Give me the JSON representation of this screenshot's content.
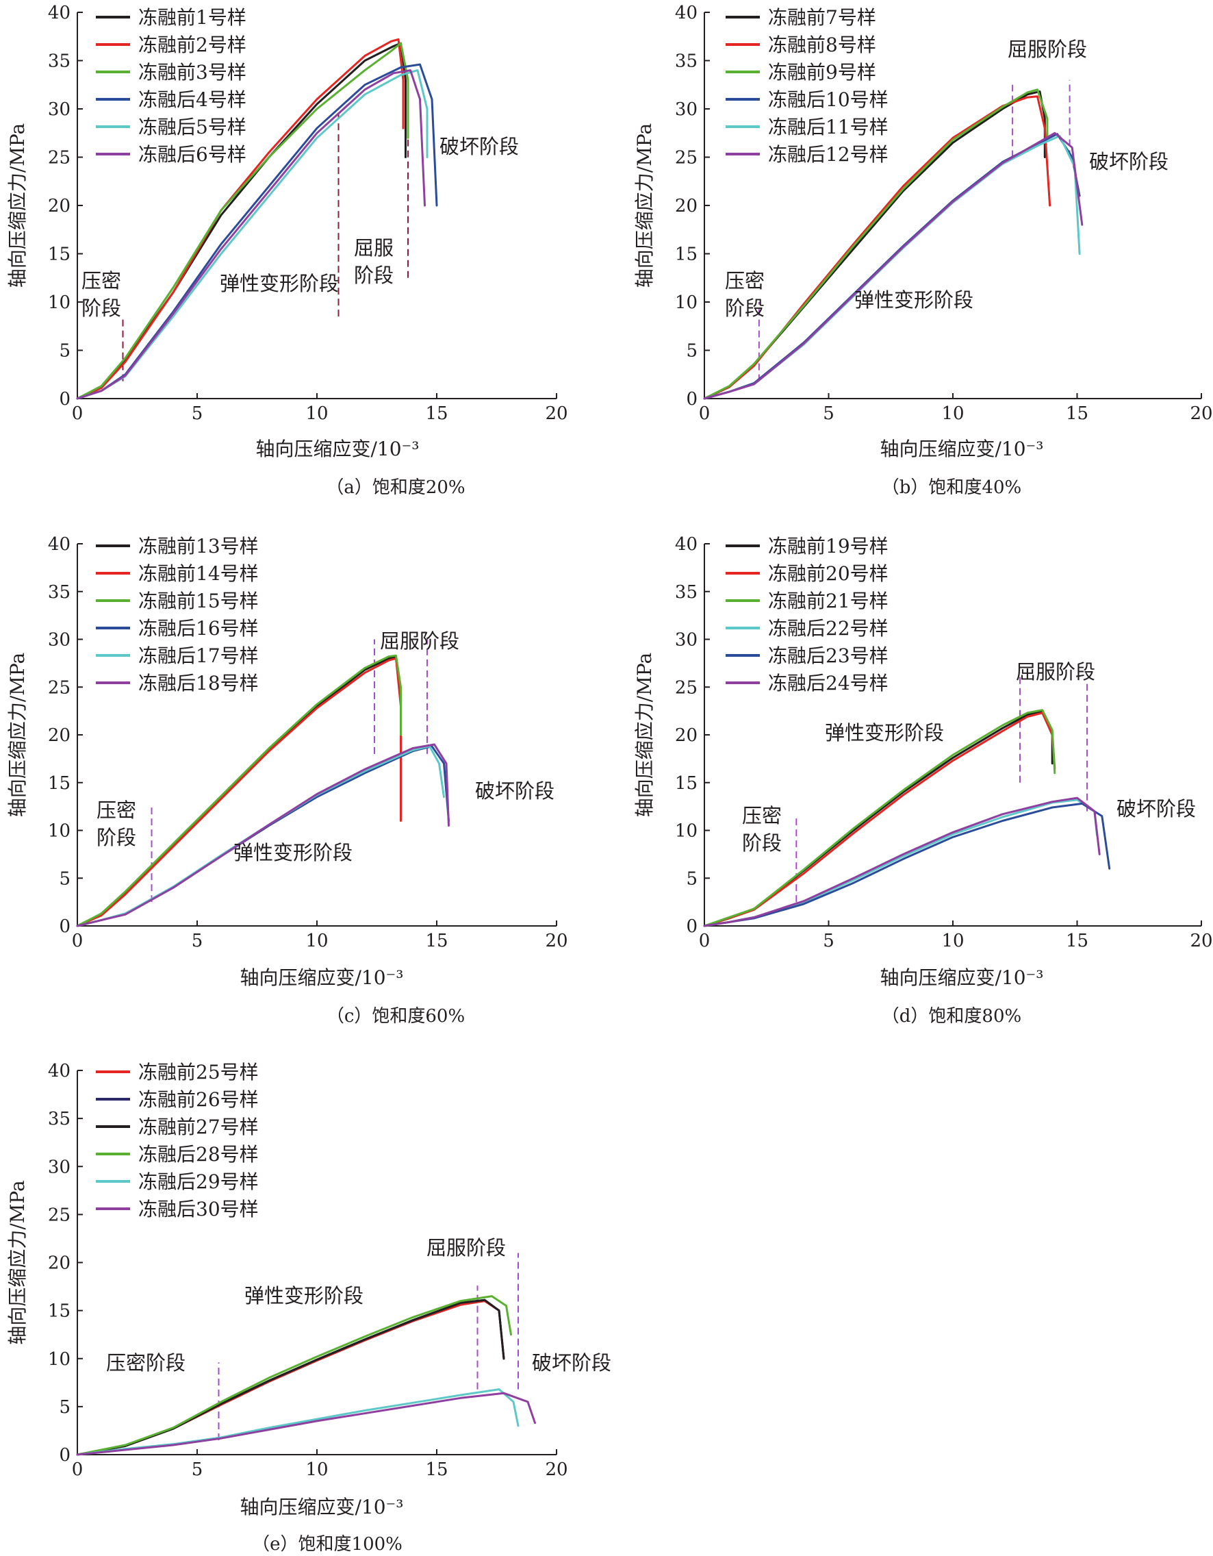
{
  "chart_data": [
    {
      "type": "line",
      "caption": "（a）饱和度20%",
      "xlabel": "轴向压缩应变/10⁻³",
      "ylabel": "轴向压缩应力/MPa",
      "xlim": [
        0,
        20
      ],
      "ylim": [
        0,
        40
      ],
      "xticks": [
        "0",
        "5",
        "10",
        "15",
        "20"
      ],
      "yticks": [
        "0",
        "5",
        "10",
        "15",
        "20",
        "25",
        "30",
        "35",
        "40"
      ],
      "colors": [
        "#231f20",
        "#e52521",
        "#5ab031",
        "#2b4b9b",
        "#5cc8c8",
        "#8e3fa0"
      ],
      "series": [
        {
          "name": "冻融前1号样",
          "x": [
            0,
            1,
            2,
            4,
            6,
            8,
            10,
            12,
            13.2,
            13.5,
            13.7,
            13.7
          ],
          "y": [
            0,
            1.2,
            4.0,
            11,
            19,
            25,
            30.5,
            35,
            36.5,
            36.8,
            33,
            25
          ]
        },
        {
          "name": "冻融前2号样",
          "x": [
            0,
            1,
            2,
            4,
            6,
            8,
            10,
            12,
            13.1,
            13.4,
            13.6,
            13.6
          ],
          "y": [
            0,
            1.1,
            3.8,
            11,
            19.5,
            25.5,
            31,
            35.5,
            37,
            37.2,
            33,
            28
          ]
        },
        {
          "name": "冻融前3号样",
          "x": [
            0,
            1,
            2,
            4,
            6,
            8,
            10,
            12,
            13.1,
            13.5,
            13.8,
            13.8
          ],
          "y": [
            0,
            1.3,
            4.2,
            11.5,
            19.5,
            25,
            30,
            34,
            36,
            36.8,
            33,
            27
          ]
        },
        {
          "name": "冻融后4号样",
          "x": [
            0,
            1,
            2,
            4,
            6,
            8,
            10,
            12,
            13.5,
            14.3,
            14.8,
            15
          ],
          "y": [
            0,
            0.8,
            2.5,
            9,
            16,
            22,
            28,
            32.5,
            34.3,
            34.6,
            31,
            20
          ]
        },
        {
          "name": "冻融后5号样",
          "x": [
            0,
            1,
            2,
            4,
            6,
            8,
            10,
            12,
            13.5,
            14.2,
            14.6,
            14.6
          ],
          "y": [
            0,
            0.8,
            2.3,
            8.5,
            15,
            21,
            27,
            31.5,
            33.5,
            34,
            30,
            25
          ]
        },
        {
          "name": "冻融后6号样",
          "x": [
            0,
            1,
            2,
            4,
            6,
            8,
            10,
            12,
            13.2,
            13.9,
            14.3,
            14.5
          ],
          "y": [
            0,
            0.8,
            2.4,
            8.8,
            15.5,
            21.5,
            27.5,
            32,
            33.7,
            34,
            31,
            20
          ]
        }
      ],
      "stage_labels": [
        "压密",
        "阶段",
        "弹性变形阶段",
        "屈服",
        "阶段",
        "破坏阶段"
      ],
      "stage_lines_x": [
        1.9,
        10.9,
        13.8
      ]
    },
    {
      "type": "line",
      "caption": "（b）饱和度40%",
      "xlabel": "轴向压缩应变/10⁻³",
      "ylabel": "轴向压缩应力/MPa",
      "xlim": [
        0,
        20
      ],
      "ylim": [
        0,
        40
      ],
      "xticks": [
        "0",
        "5",
        "10",
        "15",
        "20"
      ],
      "yticks": [
        "0",
        "5",
        "10",
        "15",
        "20",
        "25",
        "30",
        "35",
        "40"
      ],
      "colors": [
        "#231f20",
        "#e52521",
        "#5ab031",
        "#2b4b9b",
        "#5cc8c8",
        "#8e3fa0"
      ],
      "series": [
        {
          "name": "冻融前7号样",
          "x": [
            0,
            1,
            2,
            4,
            6,
            8,
            10,
            12,
            13,
            13.5,
            13.7,
            13.7
          ],
          "y": [
            0,
            1.2,
            3.5,
            9.5,
            15.5,
            21.5,
            26.5,
            30,
            31.5,
            31.8,
            29,
            25
          ]
        },
        {
          "name": "冻融前8号样",
          "x": [
            0,
            1,
            2,
            4,
            6,
            8,
            10,
            12,
            13,
            13.4,
            13.7,
            13.9
          ],
          "y": [
            0,
            1.2,
            3.4,
            9.8,
            16,
            22,
            27,
            30.3,
            31.2,
            31.3,
            28,
            20
          ]
        },
        {
          "name": "冻融前9号样",
          "x": [
            0,
            1,
            2,
            4,
            6,
            8,
            10,
            12,
            13,
            13.4,
            13.8,
            13.8
          ],
          "y": [
            0,
            1.3,
            3.6,
            9.6,
            15.8,
            21.7,
            26.8,
            30.2,
            31.7,
            32,
            29,
            27
          ]
        },
        {
          "name": "冻融后10号样",
          "x": [
            0,
            1,
            2,
            4,
            6,
            8,
            10,
            12,
            13.5,
            14.2,
            14.8,
            15.1
          ],
          "y": [
            0,
            0.7,
            1.6,
            5.8,
            10.8,
            15.8,
            20.5,
            24.5,
            26.5,
            27.4,
            25,
            21
          ]
        },
        {
          "name": "冻融后11号样",
          "x": [
            0,
            1,
            2,
            4,
            6,
            8,
            10,
            12,
            13.5,
            14.3,
            14.9,
            15.1
          ],
          "y": [
            0,
            0.7,
            1.5,
            5.6,
            10.6,
            15.6,
            20.3,
            24.3,
            26.3,
            27.2,
            24,
            15
          ]
        },
        {
          "name": "冻融后12号样",
          "x": [
            0,
            1,
            2,
            4,
            6,
            8,
            10,
            12,
            13.5,
            14.1,
            14.8,
            15.2
          ],
          "y": [
            0,
            0.7,
            1.5,
            5.7,
            10.7,
            15.7,
            20.4,
            24.4,
            26.6,
            27.5,
            26,
            18
          ]
        }
      ],
      "stage_labels": [
        "压密",
        "阶段",
        "弹性变形阶段",
        "屈服阶段",
        "破坏阶段"
      ],
      "stage_lines_x": [
        2.2,
        12.4,
        14.7
      ]
    },
    {
      "type": "line",
      "caption": "（c）饱和度60%",
      "xlabel": "轴向压缩应变/10⁻³",
      "ylabel": "轴向压缩应力/MPa",
      "xlim": [
        0,
        20
      ],
      "ylim": [
        0,
        40
      ],
      "xticks": [
        "0",
        "5",
        "10",
        "15",
        "20"
      ],
      "yticks": [
        "0",
        "5",
        "10",
        "15",
        "20",
        "25",
        "30",
        "35",
        "40"
      ],
      "colors": [
        "#231f20",
        "#e52521",
        "#5ab031",
        "#2b4b9b",
        "#5cc8c8",
        "#8e3fa0"
      ],
      "series": [
        {
          "name": "冻融前13号样",
          "x": [
            0,
            1,
            2,
            4,
            6,
            8,
            10,
            12,
            13,
            13.3,
            13.5,
            13.5
          ],
          "y": [
            0,
            1.2,
            3.5,
            8.5,
            13.5,
            18.5,
            23,
            26.8,
            28,
            28.1,
            24,
            15
          ]
        },
        {
          "name": "冻融前14号样",
          "x": [
            0,
            1,
            2,
            4,
            6,
            8,
            10,
            12,
            13,
            13.3,
            13.5,
            13.5
          ],
          "y": [
            0,
            1.1,
            3.3,
            8.3,
            13.3,
            18.3,
            22.8,
            26.5,
            27.8,
            28,
            23,
            11
          ]
        },
        {
          "name": "冻融前15号样",
          "x": [
            0,
            1,
            2,
            4,
            6,
            8,
            10,
            12,
            13,
            13.3,
            13.5,
            13.5
          ],
          "y": [
            0,
            1.3,
            3.6,
            8.6,
            13.6,
            18.6,
            23.2,
            27,
            28.2,
            28.3,
            25,
            20
          ]
        },
        {
          "name": "冻融后16号样",
          "x": [
            0,
            1,
            2,
            4,
            6,
            8,
            10,
            12,
            14,
            14.8,
            15.3,
            15.5
          ],
          "y": [
            0,
            0.6,
            1.3,
            4,
            7.3,
            10.5,
            13.5,
            16,
            18.3,
            18.8,
            17,
            11
          ]
        },
        {
          "name": "冻融后17号样",
          "x": [
            0,
            1,
            2,
            4,
            6,
            8,
            10,
            12,
            14,
            14.7,
            15.1,
            15.3
          ],
          "y": [
            0,
            0.6,
            1.3,
            4.1,
            7.4,
            10.6,
            13.7,
            16.2,
            18.4,
            18.8,
            17,
            13.5
          ]
        },
        {
          "name": "冻融后18号样",
          "x": [
            0,
            1,
            2,
            4,
            6,
            8,
            10,
            12,
            14,
            14.9,
            15.4,
            15.5
          ],
          "y": [
            0,
            0.6,
            1.2,
            4,
            7.3,
            10.6,
            13.8,
            16.4,
            18.6,
            19,
            17,
            10.5
          ]
        }
      ],
      "stage_labels": [
        "压密",
        "阶段",
        "弹性变形阶段",
        "屈服阶段",
        "破坏阶段"
      ],
      "stage_lines_x": [
        3.1,
        12.4,
        14.6
      ]
    },
    {
      "type": "line",
      "caption": "（d）饱和度80%",
      "xlabel": "轴向压缩应变/10⁻³",
      "ylabel": "轴向压缩应力/MPa",
      "xlim": [
        0,
        20
      ],
      "ylim": [
        0,
        40
      ],
      "xticks": [
        "0",
        "5",
        "10",
        "15",
        "20"
      ],
      "yticks": [
        "0",
        "5",
        "10",
        "15",
        "20",
        "25",
        "30",
        "35",
        "40"
      ],
      "colors": [
        "#231f20",
        "#e52521",
        "#5ab031",
        "#5cc8c8",
        "#2b4b9b",
        "#8e3fa0"
      ],
      "series": [
        {
          "name": "冻融前19号样",
          "x": [
            0,
            1,
            2,
            4,
            6,
            8,
            10,
            12,
            13,
            13.6,
            14,
            14
          ],
          "y": [
            0,
            0.8,
            1.8,
            5.8,
            10,
            14,
            17.6,
            20.7,
            22.1,
            22.5,
            20,
            17
          ]
        },
        {
          "name": "冻融前20号样",
          "x": [
            0,
            1,
            2,
            4,
            6,
            8,
            10,
            12,
            13,
            13.6,
            14,
            14.1
          ],
          "y": [
            0,
            0.8,
            1.7,
            5.5,
            9.7,
            13.7,
            17.3,
            20.4,
            21.9,
            22.3,
            20,
            16.5
          ]
        },
        {
          "name": "冻融前21号样",
          "x": [
            0,
            1,
            2,
            4,
            6,
            8,
            10,
            12,
            13,
            13.6,
            14,
            14.1
          ],
          "y": [
            0,
            0.9,
            1.8,
            5.9,
            10.2,
            14.2,
            17.9,
            21,
            22.3,
            22.6,
            20.5,
            16
          ]
        },
        {
          "name": "冻融后22号样",
          "x": [
            0,
            1,
            2,
            4,
            6,
            8,
            10,
            12,
            14,
            15,
            15.7,
            15.8
          ],
          "y": [
            0,
            0.4,
            0.9,
            2.5,
            4.8,
            7.3,
            9.6,
            11.4,
            12.9,
            13.2,
            12,
            9.5
          ]
        },
        {
          "name": "冻融后23号样",
          "x": [
            0,
            1,
            2,
            4,
            6,
            8,
            10,
            12,
            14,
            15.2,
            16,
            16.3
          ],
          "y": [
            0,
            0.4,
            0.8,
            2.3,
            4.5,
            7,
            9.3,
            11,
            12.4,
            12.8,
            11.5,
            6
          ]
        },
        {
          "name": "冻融后24号样",
          "x": [
            0,
            1,
            2,
            4,
            6,
            8,
            10,
            12,
            14,
            15,
            15.7,
            15.9
          ],
          "y": [
            0,
            0.4,
            0.9,
            2.6,
            5,
            7.5,
            9.8,
            11.7,
            13,
            13.4,
            12,
            7.5
          ]
        }
      ],
      "stage_labels": [
        "压密",
        "阶段",
        "弹性变形阶段",
        "屈服阶段",
        "破坏阶段"
      ],
      "stage_lines_x": [
        3.7,
        12.7,
        15.4
      ]
    },
    {
      "type": "line",
      "caption": "（e）饱和度100%",
      "xlabel": "轴向压缩应变/10⁻³",
      "ylabel": "轴向压缩应力/MPa",
      "xlim": [
        0,
        20
      ],
      "ylim": [
        0,
        40
      ],
      "xticks": [
        "0",
        "5",
        "10",
        "15",
        "20"
      ],
      "yticks": [
        "0",
        "5",
        "10",
        "15",
        "20",
        "25",
        "30",
        "35",
        "40"
      ],
      "colors": [
        "#e52521",
        "#2a2a6a",
        "#231f20",
        "#5ab031",
        "#5cc8c8",
        "#8e3fa0"
      ],
      "series": [
        {
          "name": "冻融前25号样",
          "x": [
            0,
            2,
            4,
            6,
            8,
            10,
            12,
            14,
            16,
            17,
            17.6,
            17.8
          ],
          "y": [
            0,
            0.9,
            2.7,
            5.2,
            7.6,
            9.8,
            11.9,
            13.9,
            15.6,
            16,
            15,
            10
          ]
        },
        {
          "name": "冻融前26号样",
          "x": [
            0,
            2,
            4,
            6,
            8,
            10,
            12,
            14,
            16,
            17,
            17.6,
            17.8
          ],
          "y": [
            0,
            0.9,
            2.7,
            5.3,
            7.7,
            9.9,
            12,
            14,
            15.8,
            16.1,
            15,
            10
          ]
        },
        {
          "name": "冻融前27号样",
          "x": [
            0,
            2,
            4,
            6,
            8,
            10,
            12,
            14,
            16,
            17,
            17.6,
            17.8
          ],
          "y": [
            0,
            0.9,
            2.7,
            5.3,
            7.7,
            9.9,
            12,
            14,
            15.8,
            16.1,
            15,
            10
          ]
        },
        {
          "name": "冻融后28号样",
          "x": [
            0,
            2,
            4,
            6,
            8,
            10,
            12,
            14,
            16,
            17.3,
            17.9,
            18.1
          ],
          "y": [
            0,
            1,
            2.8,
            5.5,
            8,
            10.2,
            12.3,
            14.3,
            16,
            16.5,
            15.5,
            12.5
          ]
        },
        {
          "name": "冻融后29号样",
          "x": [
            0,
            2,
            4,
            6,
            8,
            10,
            12,
            14,
            16,
            17.6,
            18.2,
            18.4
          ],
          "y": [
            0,
            0.6,
            1.1,
            1.8,
            2.8,
            3.7,
            4.6,
            5.4,
            6.2,
            6.8,
            5.5,
            3
          ]
        },
        {
          "name": "冻融后30号样",
          "x": [
            0,
            2,
            4,
            6,
            8,
            10,
            12,
            14,
            16,
            17.8,
            18.8,
            19.1
          ],
          "y": [
            0,
            0.5,
            1,
            1.7,
            2.6,
            3.5,
            4.3,
            5.1,
            5.9,
            6.4,
            5.5,
            3.3
          ]
        }
      ],
      "stage_labels": [
        "压密阶段",
        "弹性变形阶段",
        "屈服阶段",
        "破坏阶段"
      ],
      "stage_lines_x": [
        5.9,
        16.7,
        18.4
      ]
    }
  ]
}
